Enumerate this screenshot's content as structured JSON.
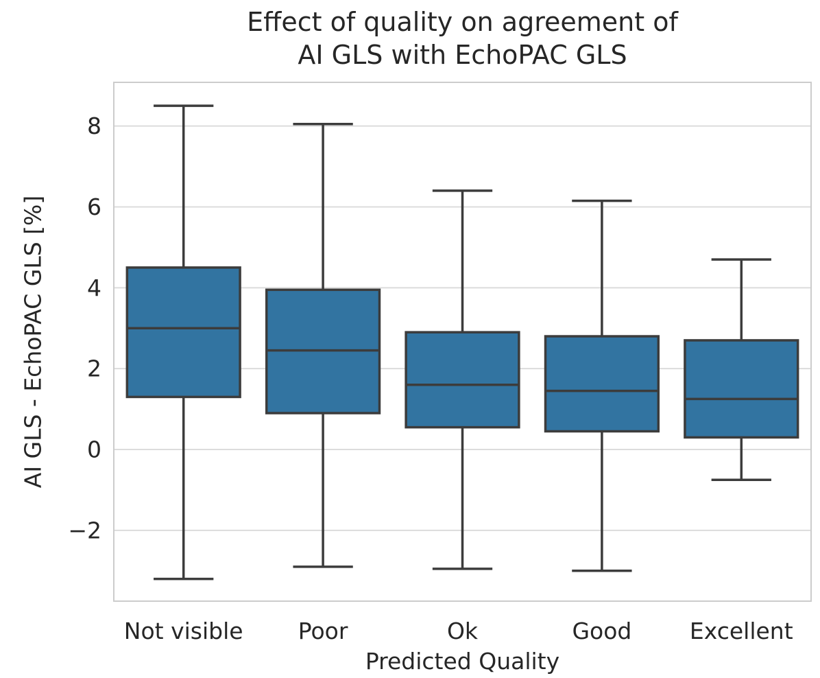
{
  "page": {
    "background": "#ffffff"
  },
  "chart_data": {
    "type": "boxplot",
    "title": "Effect of quality on agreement of\nAI GLS with EchoPAC GLS",
    "xlabel": "Predicted Quality",
    "ylabel": "AI GLS - EchoPAC GLS [%]",
    "categories": [
      "Not visible",
      "Poor",
      "Ok",
      "Good",
      "Excellent"
    ],
    "yticks": [
      8,
      6,
      4,
      2,
      0,
      -2
    ],
    "ylim": [
      -3.75,
      9.08
    ],
    "grid": "horizontal-only",
    "legend": "none",
    "boxes": [
      {
        "category": "Not visible",
        "whisker_low": -3.2,
        "q1": 1.3,
        "median": 3.0,
        "q3": 4.5,
        "whisker_high": 8.5
      },
      {
        "category": "Poor",
        "whisker_low": -2.9,
        "q1": 0.9,
        "median": 2.45,
        "q3": 3.95,
        "whisker_high": 8.05
      },
      {
        "category": "Ok",
        "whisker_low": -2.95,
        "q1": 0.55,
        "median": 1.6,
        "q3": 2.9,
        "whisker_high": 6.4
      },
      {
        "category": "Good",
        "whisker_low": -3.0,
        "q1": 0.45,
        "median": 1.45,
        "q3": 2.8,
        "whisker_high": 6.15
      },
      {
        "category": "Excellent",
        "whisker_low": -0.75,
        "q1": 0.3,
        "median": 1.25,
        "q3": 2.7,
        "whisker_high": 4.7
      }
    ],
    "colors": {
      "box_fill": "#3274a1",
      "box_edge": "#3c3c3c",
      "median": "#3c3c3c",
      "whisker": "#3c3c3c",
      "grid": "#dcdcdc",
      "spine": "#cccccc",
      "text": "#262626",
      "background": "#ffffff"
    }
  }
}
